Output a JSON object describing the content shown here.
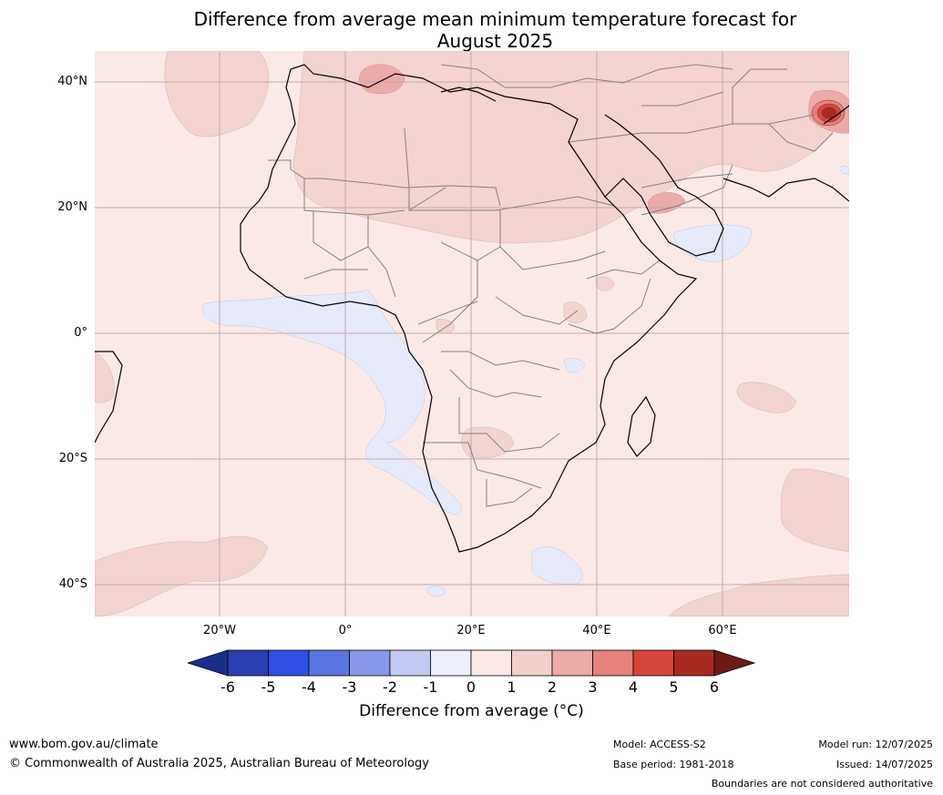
{
  "title_line1": "Difference from average mean minimum temperature forecast for",
  "title_line2": "August 2025",
  "map": {
    "lat_labels": [
      "40°N",
      "20°N",
      "0°",
      "20°S",
      "40°S"
    ],
    "lon_labels": [
      "20°W",
      "0°",
      "20°E",
      "40°E",
      "60°E"
    ],
    "background_anomaly_color": "#fbe9e7",
    "coastline_color": "#000000",
    "border_color": "#808080"
  },
  "colorbar": {
    "ticks": [
      "-6",
      "-5",
      "-4",
      "-3",
      "-2",
      "-1",
      "0",
      "1",
      "2",
      "3",
      "4",
      "5",
      "6"
    ],
    "colors": [
      "#1a2f8c",
      "#2a3fb0",
      "#2f4fe0",
      "#5a74e0",
      "#8798e8",
      "#c3c9f2",
      "#eceefb",
      "#fbe9e7",
      "#f4cfcc",
      "#ebaba6",
      "#e5827c",
      "#d7463c",
      "#a82a22",
      "#6e1a14"
    ],
    "label": "Difference from average (°C)"
  },
  "footer": {
    "website": "www.bom.gov.au/climate",
    "copyright": "© Commonwealth of Australia 2025, Australian Bureau of Meteorology",
    "model": "Model: ACCESS-S2",
    "base_period": "Base period: 1981-2018",
    "model_run": "Model run: 12/07/2025",
    "issued": "Issued: 14/07/2025",
    "disclaimer": "Boundaries are not considered authoritative"
  }
}
